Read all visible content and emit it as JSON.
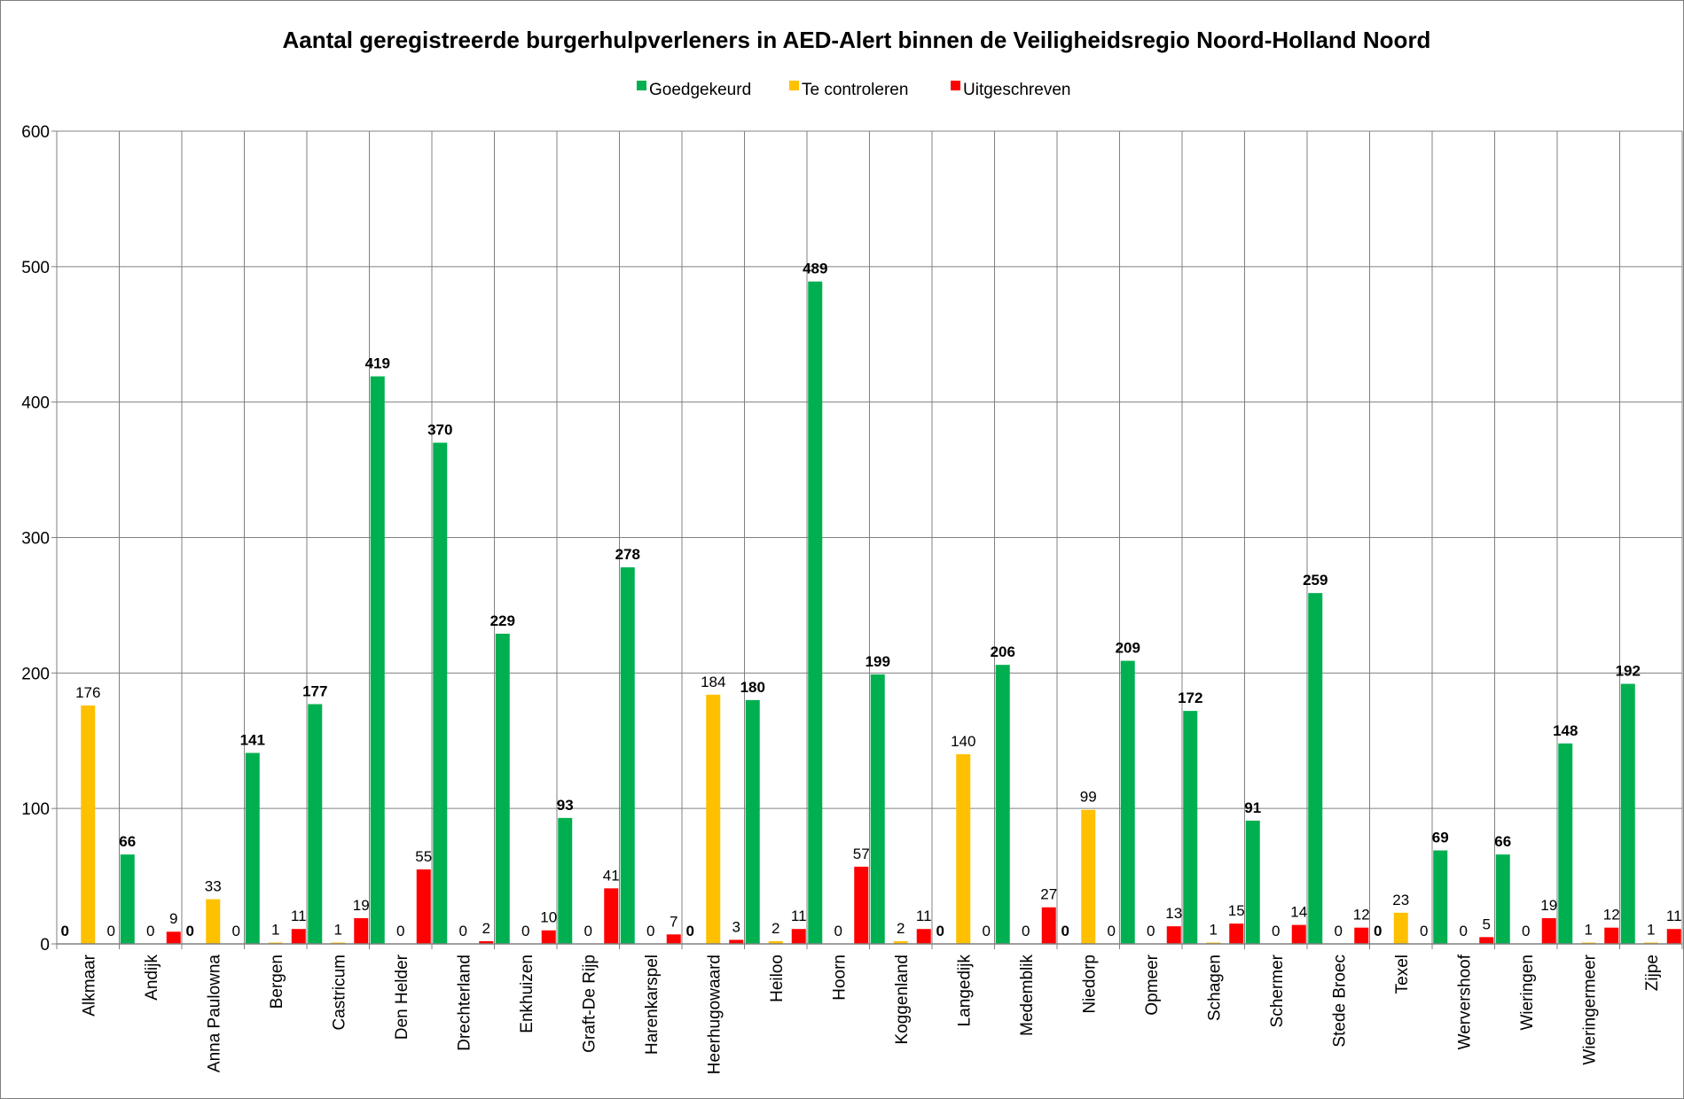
{
  "chart_data": {
    "type": "bar",
    "title": "Aantal geregistreerde burgerhulpverleners in AED-Alert binnen de Veiligheidsregio Noord-Holland Noord",
    "xlabel": "",
    "ylabel": "",
    "ylim": [
      0,
      600
    ],
    "yticks": [
      0,
      100,
      200,
      300,
      400,
      500,
      600
    ],
    "grid": true,
    "legend_position": "top",
    "categories": [
      "Alkmaar",
      "Andijk",
      "Anna Paulowna",
      "Bergen",
      "Castricum",
      "Den Helder",
      "Drechterland",
      "Enkhuizen",
      "Graft-De Rijp",
      "Harenkarspel",
      "Heerhugowaard",
      "Heiloo",
      "Hoorn",
      "Koggenland",
      "Langedijk",
      "Medemblik",
      "Niedorp",
      "Opmeer",
      "Schagen",
      "Schermer",
      "Stede Broec",
      "Texel",
      "Wervershoof",
      "Wieringen",
      "Wieringermeer",
      "Zijpe"
    ],
    "series": [
      {
        "name": "Goedgekeurd",
        "color": "#00b050",
        "values": [
          0,
          66,
          0,
          141,
          177,
          419,
          370,
          229,
          93,
          278,
          0,
          180,
          489,
          199,
          0,
          206,
          0,
          209,
          172,
          91,
          259,
          0,
          69,
          66,
          148,
          192
        ]
      },
      {
        "name": "Te controleren",
        "color": "#ffc000",
        "values": [
          176,
          0,
          33,
          1,
          1,
          0,
          0,
          0,
          0,
          0,
          184,
          2,
          0,
          2,
          140,
          0,
          99,
          0,
          1,
          0,
          0,
          23,
          0,
          0,
          1,
          1
        ]
      },
      {
        "name": "Uitgeschreven",
        "color": "#ff0000",
        "values": [
          0,
          9,
          0,
          11,
          19,
          55,
          2,
          10,
          41,
          7,
          3,
          11,
          57,
          11,
          0,
          27,
          0,
          13,
          15,
          14,
          12,
          0,
          5,
          19,
          12,
          11
        ]
      }
    ]
  }
}
